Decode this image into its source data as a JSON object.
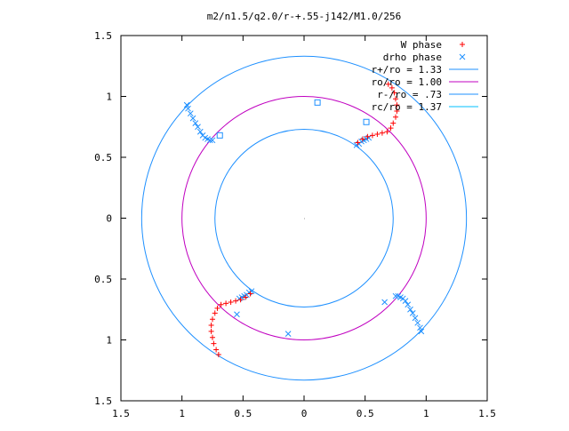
{
  "chart_data": {
    "type": "scatter",
    "title": "m2/n1.5/q2.0/r-+.55-j142/M1.0/256",
    "xlim": [
      -1.5,
      1.5
    ],
    "ylim": [
      -1.5,
      1.5
    ],
    "x_ticks": [
      -1.5,
      -1,
      -0.5,
      0,
      0.5,
      1,
      1.5
    ],
    "x_tick_labels": [
      "1.5",
      "1",
      "0.5",
      "0",
      "0.5",
      "1",
      "1.5"
    ],
    "y_ticks": [
      1.5,
      1,
      0.5,
      0,
      -0.5,
      -1,
      -1.5
    ],
    "y_tick_labels": [
      "1.5",
      "1",
      "0.5",
      "0",
      "0.5",
      "1",
      "1.5"
    ],
    "grid": false,
    "legend_position": "top-right",
    "legend": [
      {
        "label": "W phase",
        "kind": "marker",
        "marker": "plus",
        "color": "#ff0000"
      },
      {
        "label": "drho phase",
        "kind": "marker",
        "marker": "cross",
        "color": "#1e90ff"
      },
      {
        "label": "r+/ro = 1.33",
        "kind": "line",
        "color": "#1e90ff"
      },
      {
        "label": "ro/ro = 1.00",
        "kind": "line",
        "color": "#c000c0"
      },
      {
        "label": "r-/ro = .73",
        "kind": "line",
        "color": "#1e90ff"
      },
      {
        "label": "rc/ro = 1.37",
        "kind": "line",
        "color": "#00c0ff"
      }
    ],
    "circles": [
      {
        "name": "r+/ro = 1.33",
        "radius": 1.33,
        "color": "#1e90ff"
      },
      {
        "name": "ro/ro = 1.00",
        "radius": 1.0,
        "color": "#c000c0"
      },
      {
        "name": "r-/ro = .73",
        "radius": 0.73,
        "color": "#1e90ff"
      }
    ],
    "series": [
      {
        "name": "W phase",
        "marker": "plus",
        "color": "#ff0000",
        "x": [
          0.44,
          0.48,
          0.52,
          0.56,
          0.6,
          0.64,
          0.68,
          0.71,
          0.73,
          0.75,
          0.76,
          0.76,
          0.75,
          0.74,
          0.72,
          0.69,
          -0.44,
          -0.48,
          -0.52,
          -0.56,
          -0.6,
          -0.64,
          -0.68,
          -0.71,
          -0.73,
          -0.75,
          -0.76,
          -0.76,
          -0.75,
          -0.74,
          -0.72,
          -0.7
        ],
        "y": [
          0.62,
          0.65,
          0.67,
          0.68,
          0.69,
          0.7,
          0.71,
          0.74,
          0.78,
          0.83,
          0.88,
          0.93,
          0.98,
          1.03,
          1.07,
          1.1,
          -0.62,
          -0.65,
          -0.67,
          -0.68,
          -0.69,
          -0.7,
          -0.71,
          -0.74,
          -0.78,
          -0.83,
          -0.88,
          -0.93,
          -0.98,
          -1.03,
          -1.08,
          -1.12
        ]
      },
      {
        "name": "drho phase",
        "marker": "cross",
        "color": "#1e90ff",
        "x": [
          -0.96,
          -0.95,
          -0.93,
          -0.91,
          -0.89,
          -0.87,
          -0.85,
          -0.83,
          -0.81,
          -0.79,
          -0.77,
          -0.75,
          0.96,
          0.95,
          0.93,
          0.91,
          0.89,
          0.87,
          0.85,
          0.83,
          0.81,
          0.79,
          0.77,
          0.75,
          0.43,
          0.45,
          0.47,
          0.49,
          0.51,
          0.53,
          -0.43,
          -0.45,
          -0.47,
          -0.49,
          -0.51,
          -0.53,
          0.66,
          -0.13,
          -0.55
        ],
        "y": [
          0.93,
          0.9,
          0.86,
          0.82,
          0.78,
          0.75,
          0.71,
          0.68,
          0.66,
          0.65,
          0.64,
          0.64,
          -0.93,
          -0.9,
          -0.86,
          -0.82,
          -0.78,
          -0.75,
          -0.71,
          -0.68,
          -0.66,
          -0.65,
          -0.64,
          -0.64,
          0.6,
          0.61,
          0.63,
          0.64,
          0.65,
          0.66,
          -0.6,
          -0.61,
          -0.63,
          -0.64,
          -0.65,
          -0.66,
          -0.69,
          -0.95,
          -0.79
        ]
      },
      {
        "name": "markers",
        "marker": "open-square",
        "color": "#1e90ff",
        "x": [
          0.11,
          0.51,
          -0.69
        ],
        "y": [
          0.95,
          0.79,
          0.68
        ]
      }
    ]
  }
}
